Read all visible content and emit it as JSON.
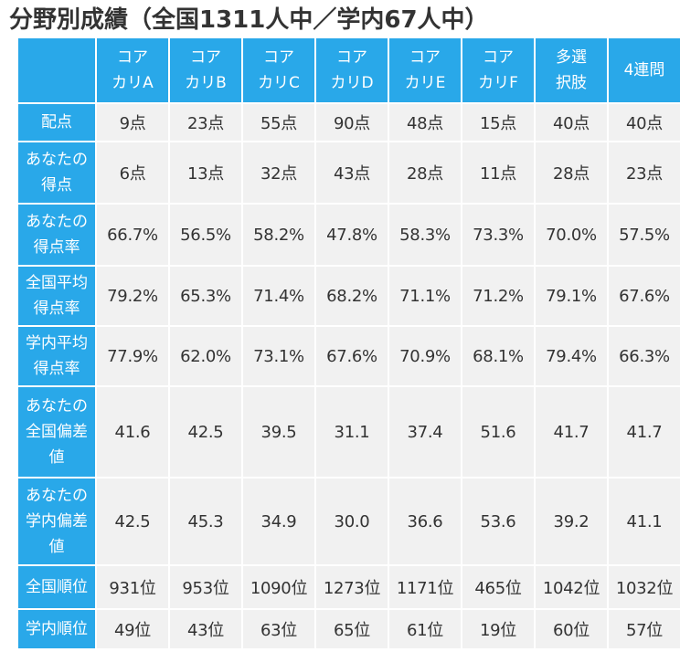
{
  "title": "分野別成績（全国1311人中／学内67人中）",
  "columns": [
    {
      "line1": "コア",
      "line2": "カリA"
    },
    {
      "line1": "コア",
      "line2": "カリB"
    },
    {
      "line1": "コア",
      "line2": "カリC"
    },
    {
      "line1": "コア",
      "line2": "カリD"
    },
    {
      "line1": "コア",
      "line2": "カリE"
    },
    {
      "line1": "コア",
      "line2": "カリF"
    },
    {
      "line1": "多選",
      "line2": "択肢"
    },
    {
      "line1": "4連問",
      "line2": ""
    }
  ],
  "rows": [
    {
      "label": [
        "配点"
      ],
      "values": [
        "9点",
        "23点",
        "55点",
        "90点",
        "48点",
        "15点",
        "40点",
        "40点"
      ]
    },
    {
      "label": [
        "あなたの",
        "得点"
      ],
      "values": [
        "6点",
        "13点",
        "32点",
        "43点",
        "28点",
        "11点",
        "28点",
        "23点"
      ]
    },
    {
      "label": [
        "あなたの",
        "得点率"
      ],
      "values": [
        "66.7%",
        "56.5%",
        "58.2%",
        "47.8%",
        "58.3%",
        "73.3%",
        "70.0%",
        "57.5%"
      ]
    },
    {
      "label": [
        "全国平均",
        "得点率"
      ],
      "values": [
        "79.2%",
        "65.3%",
        "71.4%",
        "68.2%",
        "71.1%",
        "71.2%",
        "79.1%",
        "67.6%"
      ]
    },
    {
      "label": [
        "学内平均",
        "得点率"
      ],
      "values": [
        "77.9%",
        "62.0%",
        "73.1%",
        "67.6%",
        "70.9%",
        "68.1%",
        "79.4%",
        "66.3%"
      ]
    },
    {
      "label": [
        "あなたの",
        "全国偏差",
        "値"
      ],
      "values": [
        "41.6",
        "42.5",
        "39.5",
        "31.1",
        "37.4",
        "51.6",
        "41.7",
        "41.7"
      ]
    },
    {
      "label": [
        "あなたの",
        "学内偏差",
        "値"
      ],
      "values": [
        "42.5",
        "45.3",
        "34.9",
        "30.0",
        "36.6",
        "53.6",
        "39.2",
        "41.1"
      ]
    },
    {
      "label": [
        "全国順位"
      ],
      "values": [
        "931位",
        "953位",
        "1090位",
        "1273位",
        "1171位",
        "465位",
        "1042位",
        "1032位"
      ]
    },
    {
      "label": [
        "学内順位"
      ],
      "values": [
        "49位",
        "43位",
        "63位",
        "65位",
        "61位",
        "19位",
        "60位",
        "57位"
      ]
    }
  ],
  "colors": {
    "header_bg": "#29a8e9",
    "cell_bg": "#f1f1f1",
    "text": "#333333"
  }
}
